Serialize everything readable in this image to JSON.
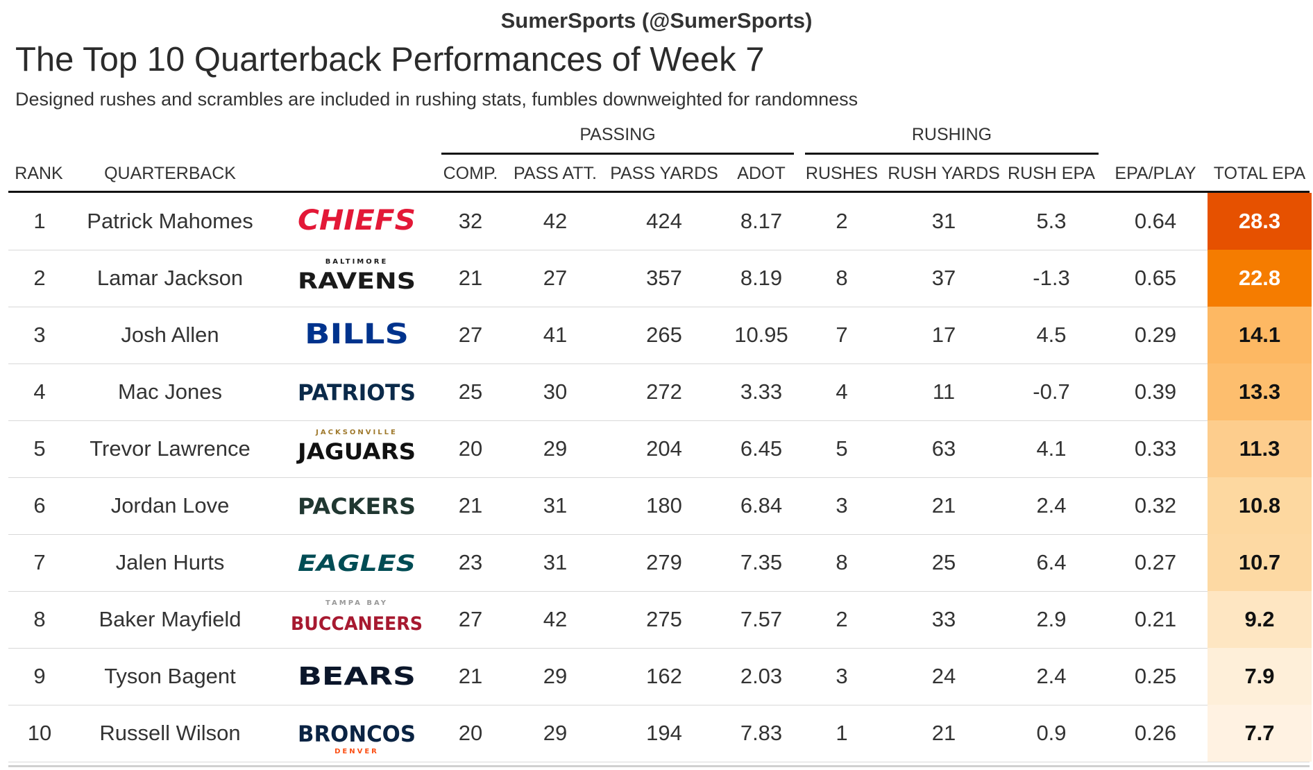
{
  "credit": "SumerSports (@SumerSports)",
  "title": "The Top 10 Quarterback Performances of Week 7",
  "subtitle": "Designed rushes and scrambles are included in rushing stats, fumbles downweighted for randomness",
  "groups": {
    "passing": "PASSING",
    "rushing": "RUSHING"
  },
  "columns": {
    "rank": "RANK",
    "quarterback": "QUARTERBACK",
    "comp": "COMP.",
    "pass_att": "PASS ATT.",
    "pass_yards": "PASS YARDS",
    "adot": "ADOT",
    "rushes": "RUSHES",
    "rush_yards": "RUSH YARDS",
    "rush_epa": "RUSH EPA",
    "epa_play": "EPA/PLAY",
    "total_epa": "TOTAL EPA"
  },
  "rows": [
    {
      "rank": "1",
      "name": "Patrick Mahomes",
      "team": "CHIEFS",
      "team_sub": "",
      "logo_color": "#E31837",
      "sub_color": "",
      "comp": "32",
      "att": "42",
      "yds": "424",
      "adot": "8.17",
      "rushes": "2",
      "ryds": "31",
      "repa": "5.3",
      "epaplay": "0.64",
      "total": "28.3",
      "bg": "#E65100",
      "fg": "#ffffff"
    },
    {
      "rank": "2",
      "name": "Lamar Jackson",
      "team": "RAVENS",
      "team_sub": "BALTIMORE",
      "logo_color": "#1a1a1a",
      "sub_color": "#1a1a1a",
      "comp": "21",
      "att": "27",
      "yds": "357",
      "adot": "8.19",
      "rushes": "8",
      "ryds": "37",
      "repa": "-1.3",
      "epaplay": "0.65",
      "total": "22.8",
      "bg": "#F57C00",
      "fg": "#ffffff"
    },
    {
      "rank": "3",
      "name": "Josh Allen",
      "team": "BILLS",
      "team_sub": "",
      "logo_color": "#00338D",
      "sub_color": "",
      "comp": "27",
      "att": "41",
      "yds": "265",
      "adot": "10.95",
      "rushes": "7",
      "ryds": "17",
      "repa": "4.5",
      "epaplay": "0.29",
      "total": "14.1",
      "bg": "#FDB863",
      "fg": "#111111"
    },
    {
      "rank": "4",
      "name": "Mac Jones",
      "team": "PATRIOTS",
      "team_sub": "",
      "logo_color": "#0B2A4A",
      "sub_color": "",
      "comp": "25",
      "att": "30",
      "yds": "272",
      "adot": "3.33",
      "rushes": "4",
      "ryds": "11",
      "repa": "-0.7",
      "epaplay": "0.39",
      "total": "13.3",
      "bg": "#FDBE6E",
      "fg": "#111111"
    },
    {
      "rank": "5",
      "name": "Trevor Lawrence",
      "team": "JAGUARS",
      "team_sub": "JACKSONVILLE",
      "logo_color": "#111111",
      "sub_color": "#9F792C",
      "comp": "20",
      "att": "29",
      "yds": "204",
      "adot": "6.45",
      "rushes": "5",
      "ryds": "63",
      "repa": "4.1",
      "epaplay": "0.33",
      "total": "11.3",
      "bg": "#FDCD8D",
      "fg": "#111111"
    },
    {
      "rank": "6",
      "name": "Jordan Love",
      "team": "PACKERS",
      "team_sub": "",
      "logo_color": "#203731",
      "sub_color": "",
      "comp": "21",
      "att": "31",
      "yds": "180",
      "adot": "6.84",
      "rushes": "3",
      "ryds": "21",
      "repa": "2.4",
      "epaplay": "0.32",
      "total": "10.8",
      "bg": "#FDD8A0",
      "fg": "#111111"
    },
    {
      "rank": "7",
      "name": "Jalen Hurts",
      "team": "EAGLES",
      "team_sub": "",
      "logo_color": "#004C54",
      "sub_color": "",
      "comp": "23",
      "att": "31",
      "yds": "279",
      "adot": "7.35",
      "rushes": "8",
      "ryds": "25",
      "repa": "6.4",
      "epaplay": "0.27",
      "total": "10.7",
      "bg": "#FDD9A3",
      "fg": "#111111"
    },
    {
      "rank": "8",
      "name": "Baker Mayfield",
      "team": "BUCCANEERS",
      "team_sub": "TAMPA BAY",
      "logo_color": "#A71930",
      "sub_color": "#999999",
      "comp": "27",
      "att": "42",
      "yds": "275",
      "adot": "7.57",
      "rushes": "2",
      "ryds": "33",
      "repa": "2.9",
      "epaplay": "0.21",
      "total": "9.2",
      "bg": "#FEE6C2",
      "fg": "#111111"
    },
    {
      "rank": "9",
      "name": "Tyson Bagent",
      "team": "BEARS",
      "team_sub": "",
      "logo_color": "#0B162A",
      "sub_color": "",
      "comp": "21",
      "att": "29",
      "yds": "162",
      "adot": "2.03",
      "rushes": "3",
      "ryds": "24",
      "repa": "2.4",
      "epaplay": "0.25",
      "total": "7.9",
      "bg": "#FEEFD9",
      "fg": "#111111"
    },
    {
      "rank": "10",
      "name": "Russell Wilson",
      "team": "BRONCOS",
      "team_sub": "DENVER",
      "logo_color": "#0A2343",
      "sub_color": "#FB4F14",
      "comp": "20",
      "att": "29",
      "yds": "194",
      "adot": "7.83",
      "rushes": "1",
      "ryds": "21",
      "repa": "0.9",
      "epaplay": "0.26",
      "total": "7.7",
      "bg": "#FFF2E2",
      "fg": "#111111"
    }
  ]
}
